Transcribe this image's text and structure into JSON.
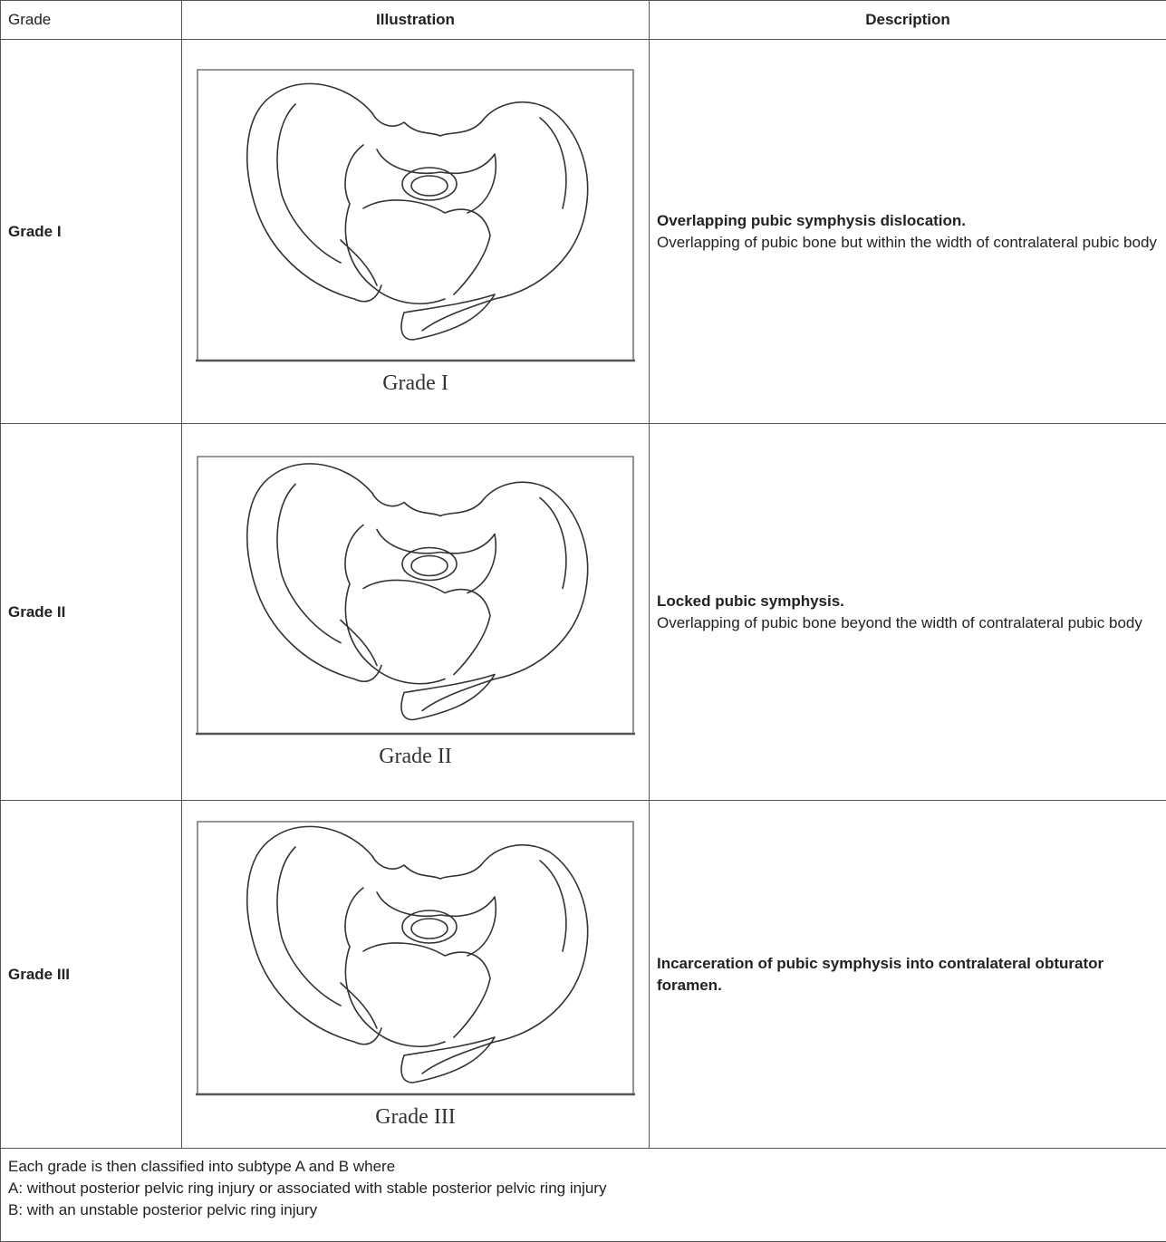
{
  "header": {
    "columns": [
      "Grade",
      "Illustration",
      "Description"
    ]
  },
  "rows": [
    {
      "grade": "Grade I",
      "caption": "Grade I",
      "title": "Overlapping pubic symphysis dislocation.",
      "text": "Overlapping of pubic bone but within the width of contralateral pubic body"
    },
    {
      "grade": "Grade II",
      "caption": "Grade II",
      "title": "Locked pubic symphysis.",
      "text": "Overlapping of pubic bone beyond the width of contralateral pubic body"
    },
    {
      "grade": "Grade III",
      "caption": "Grade III",
      "title": "Incarceration of pubic symphysis into contralateral obturator foramen."
    }
  ],
  "footer": {
    "lines": [
      "Each grade is then classified into subtype A and B where",
      "A: without posterior pelvic ring injury or associated with stable posterior pelvic ring injury",
      "B: with an unstable posterior pelvic ring injury"
    ]
  }
}
